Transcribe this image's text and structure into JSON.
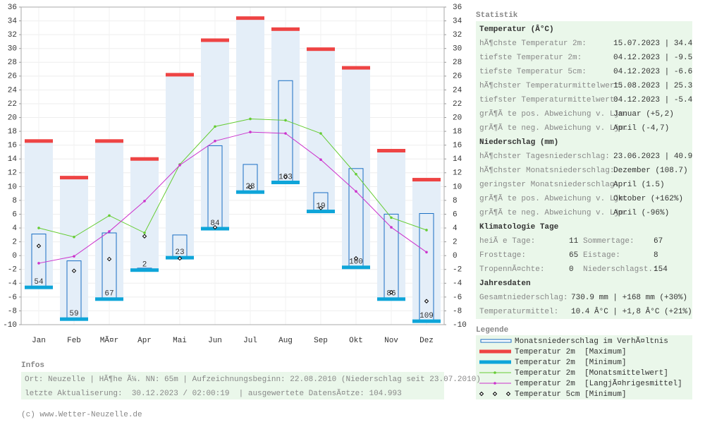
{
  "chart_data": {
    "type": "combo",
    "categories": [
      "Jan",
      "Feb",
      "MÃ¤r",
      "Apr",
      "Mai",
      "Jun",
      "Jul",
      "Aug",
      "Sep",
      "Okt",
      "Nov",
      "Dez"
    ],
    "ylim": [
      -10,
      36
    ],
    "yticks": [
      -10,
      -8,
      -6,
      -4,
      -2,
      0,
      2,
      4,
      6,
      8,
      10,
      12,
      14,
      16,
      18,
      20,
      22,
      24,
      26,
      28,
      30,
      32,
      34,
      36
    ],
    "grid": true,
    "precipitation": {
      "name": "Monatsniederschlag im VerhÃ¤ltnis",
      "color": "#1a6fc4",
      "values": [
        54,
        59,
        67,
        2,
        23,
        84,
        28,
        103,
        19,
        100,
        86,
        109
      ]
    },
    "series": [
      {
        "name": "Temperatur 2m  [Maximum]",
        "style": "cap",
        "color": "#ee4444",
        "values": [
          16.6,
          11.3,
          16.6,
          14.0,
          26.2,
          31.2,
          34.4,
          32.8,
          29.9,
          27.2,
          15.2,
          11.0
        ]
      },
      {
        "name": "Temperatur 2m  [Minimum]",
        "style": "cap",
        "color": "#0ea5d9",
        "values": [
          -4.6,
          -9.2,
          -6.3,
          -2.1,
          -0.3,
          3.9,
          9.2,
          10.6,
          6.4,
          -1.7,
          -6.3,
          -9.5
        ]
      },
      {
        "name": "Temperatur 2m  [Monatsmittelwert]",
        "style": "line",
        "color": "#66cc33",
        "values": [
          4.0,
          2.7,
          5.8,
          3.3,
          13.2,
          18.7,
          19.8,
          19.6,
          17.7,
          11.8,
          5.5,
          3.7
        ]
      },
      {
        "name": "Temperatur 2m  [LangjÃ¤hrigesmittel]",
        "style": "line",
        "color": "#cc33cc",
        "values": [
          -1.1,
          -0.1,
          3.5,
          7.9,
          13.1,
          16.6,
          17.9,
          17.7,
          13.9,
          9.3,
          4.1,
          0.5
        ]
      },
      {
        "name": "Temperatur 5cm [Minimum]",
        "style": "diamond",
        "color": "#000000",
        "values": [
          1.4,
          -2.2,
          -0.5,
          2.8,
          -0.4,
          4.1,
          9.9,
          11.4,
          6.9,
          -0.4,
          -5.3,
          -6.6
        ]
      }
    ]
  },
  "statistics": {
    "title": "Statistik",
    "sections": [
      {
        "heading": "Temperatur (Â°C)",
        "rows": [
          [
            "hÃ¶chste Temperatur 2m:",
            "15.07.2023 | 34.4"
          ],
          [
            "tiefste Temperatur 2m:",
            "04.12.2023 | -9.5"
          ],
          [
            "tiefste Temperatur 5cm:",
            "04.12.2023 | -6.6"
          ],
          [
            "hÃ¶chster Temperaturmittelwert:",
            "15.08.2023 | 25.3"
          ],
          [
            "tiefster Temperaturmittelwert:",
            "04.12.2023 | -5.4"
          ],
          [
            "grÃ¶Ã te pos. Abweichung v. Ljm:",
            "Januar (+5,2)"
          ],
          [
            "grÃ¶Ã te neg. Abweichung v. Ljm:",
            "April (-4,7)"
          ]
        ]
      },
      {
        "heading": "Niederschlag (mm)",
        "rows": [
          [
            "hÃ¶chster Tagesniederschlag:",
            "23.06.2023 | 40.9"
          ],
          [
            "hÃ¶chster Monatsniederschlag:",
            "Dezember (108.7)"
          ],
          [
            "geringster Monatsniederschlag:",
            "April (1.5)"
          ],
          [
            "grÃ¶Ã te pos. Abweichung v. Ljm:",
            "Oktober (+162%)"
          ],
          [
            "grÃ¶Ã te neg. Abweichung v. Ljm:",
            "April (-96%)"
          ]
        ]
      },
      {
        "heading": "Klimatologie Tage",
        "rows": [
          [
            "heiÃ e Tage:",
            "11",
            "Sommertage:",
            "67"
          ],
          [
            "Frosttage:",
            "65",
            "Eistage:",
            "8"
          ],
          [
            "TropennÃ¤chte:",
            "0",
            "Niederschlagst.:",
            "154"
          ]
        ]
      },
      {
        "heading": "Jahresdaten",
        "rows": [
          [
            "Gesamtniederschlag:",
            "730.9 mm | +168 mm (+30%)"
          ],
          [
            "Temperaturmittel:",
            "10.4 Â°C | +1,8 Â°C (+21%)"
          ]
        ]
      }
    ]
  },
  "legend": {
    "title": "Legende"
  },
  "infos": {
    "title": "Infos",
    "lines": [
      "Ort: Neuzelle | HÃ¶he Ã¼. NN: 65m | Aufzeichnungsbeginn: 22.08.2010 (Niederschlag seit 23.07.2010)",
      "letzte Aktualiserung:  30.12.2023 / 02:00:19  | ausgewertete DatensÃ¤tze: 104.993"
    ]
  },
  "footer": "(c) www.Wetter-Neuzelle.de"
}
